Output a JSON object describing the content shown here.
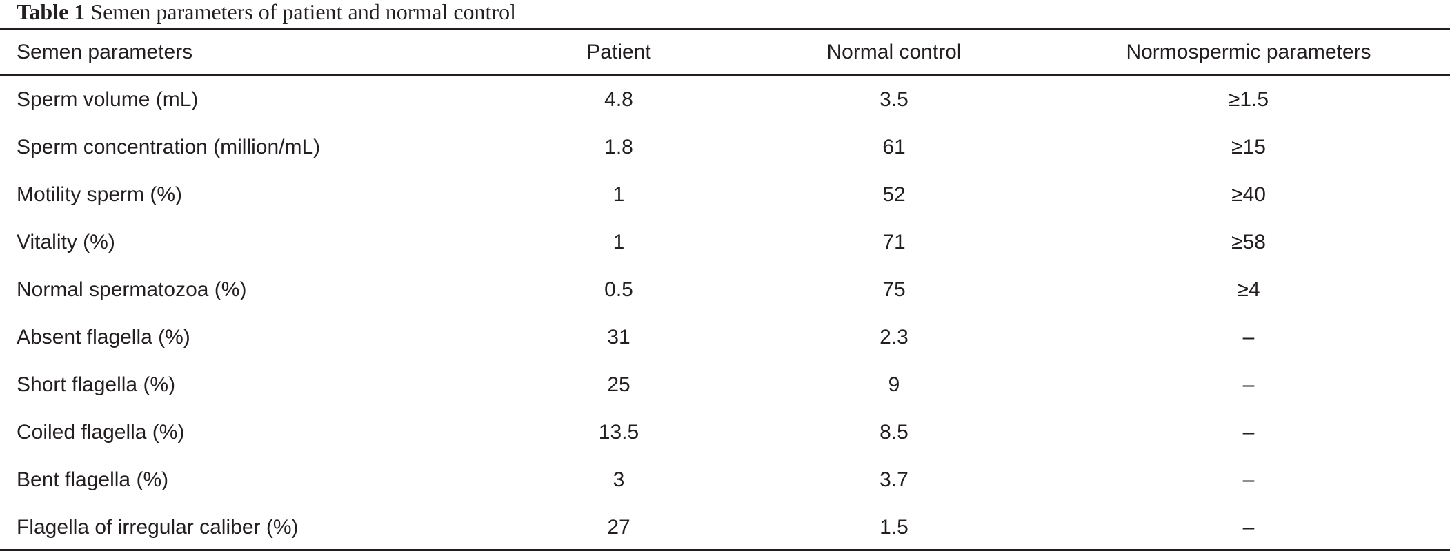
{
  "caption": {
    "label": "Table 1",
    "text": "Semen parameters of patient and normal control"
  },
  "table": {
    "headers": [
      "Semen parameters",
      "Patient",
      "Normal control",
      "Normospermic parameters"
    ],
    "rows": [
      [
        "Sperm volume (mL)",
        "4.8",
        "3.5",
        "≥1.5"
      ],
      [
        "Sperm concentration (million/mL)",
        "1.8",
        "61",
        "≥15"
      ],
      [
        "Motility sperm (%)",
        "1",
        "52",
        "≥40"
      ],
      [
        "Vitality (%)",
        "1",
        "71",
        "≥58"
      ],
      [
        "Normal spermatozoa (%)",
        "0.5",
        "75",
        "≥4"
      ],
      [
        "Absent flagella (%)",
        "31",
        "2.3",
        "–"
      ],
      [
        "Short flagella (%)",
        "25",
        "9",
        "–"
      ],
      [
        "Coiled flagella (%)",
        "13.5",
        "8.5",
        "–"
      ],
      [
        "Bent flagella (%)",
        "3",
        "3.7",
        "–"
      ],
      [
        "Flagella of irregular caliber (%)",
        "27",
        "1.5",
        "–"
      ]
    ]
  }
}
